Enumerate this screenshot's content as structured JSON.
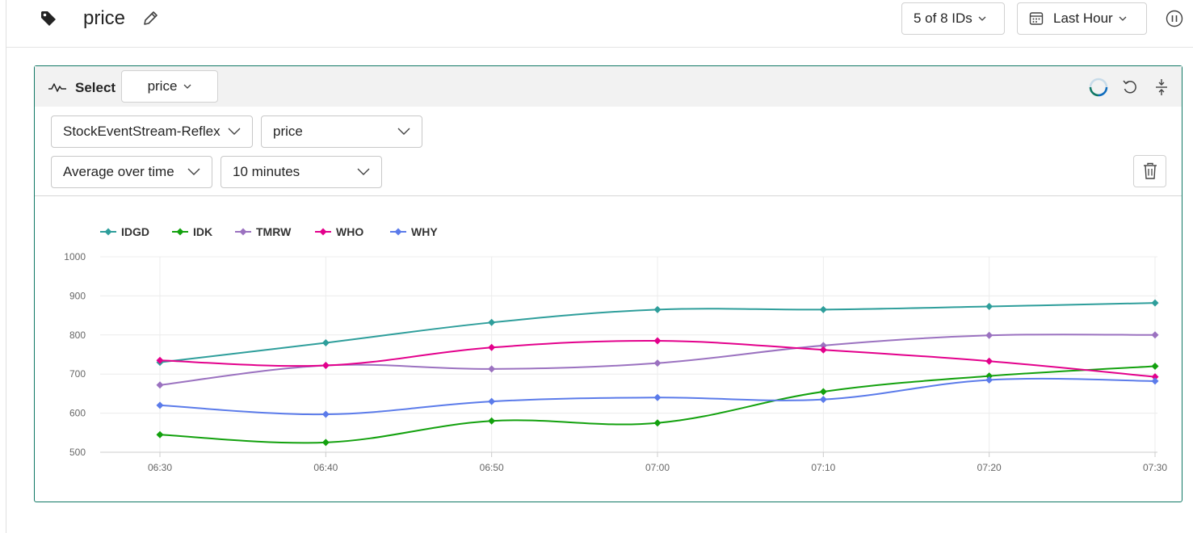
{
  "header": {
    "title": "price",
    "ids_button": "5 of 8 IDs",
    "time_button": "Last Hour",
    "icons": [
      "tag-icon",
      "edit-icon",
      "calendar-icon",
      "chevron-down-icon",
      "pause-icon"
    ]
  },
  "card": {
    "select_label": "Select",
    "select_value": "price",
    "source_dropdown": "StockEventStream-Reflex",
    "property_dropdown": "price",
    "aggregation_dropdown": "Average over time",
    "window_dropdown": "10 minutes",
    "accent_color": "#117865",
    "icons": [
      "wave-icon",
      "loading-spinner-icon",
      "undo-icon",
      "collapse-icon",
      "trash-icon"
    ]
  },
  "chart_data": {
    "type": "line",
    "x": [
      "06:30",
      "06:40",
      "06:50",
      "07:00",
      "07:10",
      "07:20",
      "07:30"
    ],
    "ylim": [
      500,
      1000
    ],
    "yticks": [
      500,
      600,
      700,
      800,
      900,
      1000
    ],
    "grid": true,
    "legend_position": "top-left",
    "series": [
      {
        "name": "IDGD",
        "color": "#2e9e9b",
        "values": [
          730,
          780,
          832,
          865,
          865,
          873,
          882
        ]
      },
      {
        "name": "IDK",
        "color": "#13a10e",
        "values": [
          545,
          525,
          580,
          575,
          655,
          695,
          720
        ]
      },
      {
        "name": "TMRW",
        "color": "#9b72c0",
        "values": [
          672,
          722,
          713,
          728,
          773,
          799,
          800
        ]
      },
      {
        "name": "WHO",
        "color": "#e3008c",
        "values": [
          735,
          722,
          768,
          785,
          762,
          733,
          693
        ]
      },
      {
        "name": "WHY",
        "color": "#5b7bea",
        "values": [
          620,
          597,
          630,
          640,
          635,
          685,
          682
        ]
      }
    ]
  }
}
